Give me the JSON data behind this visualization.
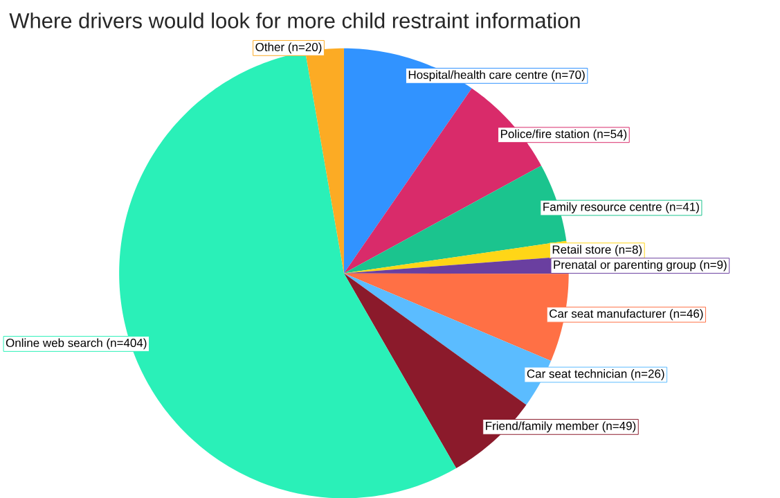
{
  "chart_data": {
    "type": "pie",
    "title": "Where drivers would look for more child restraint information",
    "categories": [
      "Hospital/health care centre (n=70)",
      "Police/fire station (n=54)",
      "Family resource centre (n=41)",
      "Retail store (n=8)",
      "Prenatal or parenting group (n=9)",
      "Car seat manufacturer (n=46)",
      "Car seat technician (n=26)",
      "Friend/family member (n=49)",
      "Online web search (n=404)",
      "Other (n=20)"
    ],
    "values": [
      70,
      54,
      41,
      8,
      9,
      46,
      26,
      49,
      404,
      20
    ],
    "colors": [
      "#3193ff",
      "#d92b6a",
      "#1bc48e",
      "#ffd617",
      "#6a3fa0",
      "#ff7045",
      "#5bbcff",
      "#8b1a2b",
      "#2af0b8",
      "#fcab24"
    ]
  }
}
